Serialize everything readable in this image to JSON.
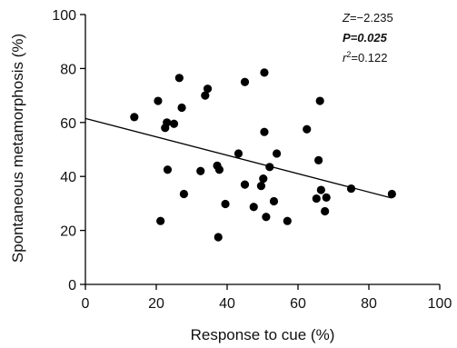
{
  "chart_data": {
    "type": "scatter",
    "xlabel": "Response to cue (%)",
    "ylabel": "Spontaneous metamorphosis (%)",
    "xlim": [
      0,
      100
    ],
    "ylim": [
      0,
      100
    ],
    "xticks": [
      "0",
      "20",
      "40",
      "60",
      "80",
      "100"
    ],
    "yticks": [
      "0",
      "20",
      "40",
      "60",
      "80",
      "100"
    ],
    "grid": false,
    "points": [
      {
        "x": 13.8,
        "y": 62
      },
      {
        "x": 20.5,
        "y": 68
      },
      {
        "x": 21.2,
        "y": 23.5
      },
      {
        "x": 22.5,
        "y": 58
      },
      {
        "x": 23.0,
        "y": 60
      },
      {
        "x": 23.2,
        "y": 42.5
      },
      {
        "x": 25.0,
        "y": 59.5
      },
      {
        "x": 26.5,
        "y": 76.5
      },
      {
        "x": 27.2,
        "y": 65.5
      },
      {
        "x": 27.8,
        "y": 33.5
      },
      {
        "x": 32.5,
        "y": 42
      },
      {
        "x": 33.8,
        "y": 70
      },
      {
        "x": 34.5,
        "y": 72.5
      },
      {
        "x": 37.2,
        "y": 44
      },
      {
        "x": 37.8,
        "y": 42.5
      },
      {
        "x": 37.5,
        "y": 17.5
      },
      {
        "x": 39.5,
        "y": 29.8
      },
      {
        "x": 43.2,
        "y": 48.5
      },
      {
        "x": 45.0,
        "y": 75
      },
      {
        "x": 45.0,
        "y": 37
      },
      {
        "x": 47.5,
        "y": 28.7
      },
      {
        "x": 49.6,
        "y": 36.5
      },
      {
        "x": 50.2,
        "y": 39.2
      },
      {
        "x": 50.5,
        "y": 78.5
      },
      {
        "x": 50.5,
        "y": 56.5
      },
      {
        "x": 51.0,
        "y": 25
      },
      {
        "x": 52.0,
        "y": 43.5
      },
      {
        "x": 53.2,
        "y": 30.8
      },
      {
        "x": 54.0,
        "y": 48.5
      },
      {
        "x": 57.0,
        "y": 23.5
      },
      {
        "x": 62.5,
        "y": 57.5
      },
      {
        "x": 65.2,
        "y": 31.8
      },
      {
        "x": 65.8,
        "y": 46
      },
      {
        "x": 66.2,
        "y": 68
      },
      {
        "x": 66.5,
        "y": 35
      },
      {
        "x": 67.6,
        "y": 27.1
      },
      {
        "x": 68.0,
        "y": 32.2
      },
      {
        "x": 75.0,
        "y": 35.5
      },
      {
        "x": 86.5,
        "y": 33.5
      }
    ],
    "fit_line": {
      "x": [
        0,
        86.5
      ],
      "y": [
        61.5,
        32.0
      ]
    },
    "annotations": {
      "z_name": "Z",
      "z_value": "=−2.235",
      "p_text": "P=0.025",
      "r2_name": "r",
      "r2_sup": "2",
      "r2_value": "=0.122"
    },
    "colors": {
      "marker": "#000000",
      "line": "#000000",
      "axis": "#000000"
    }
  }
}
